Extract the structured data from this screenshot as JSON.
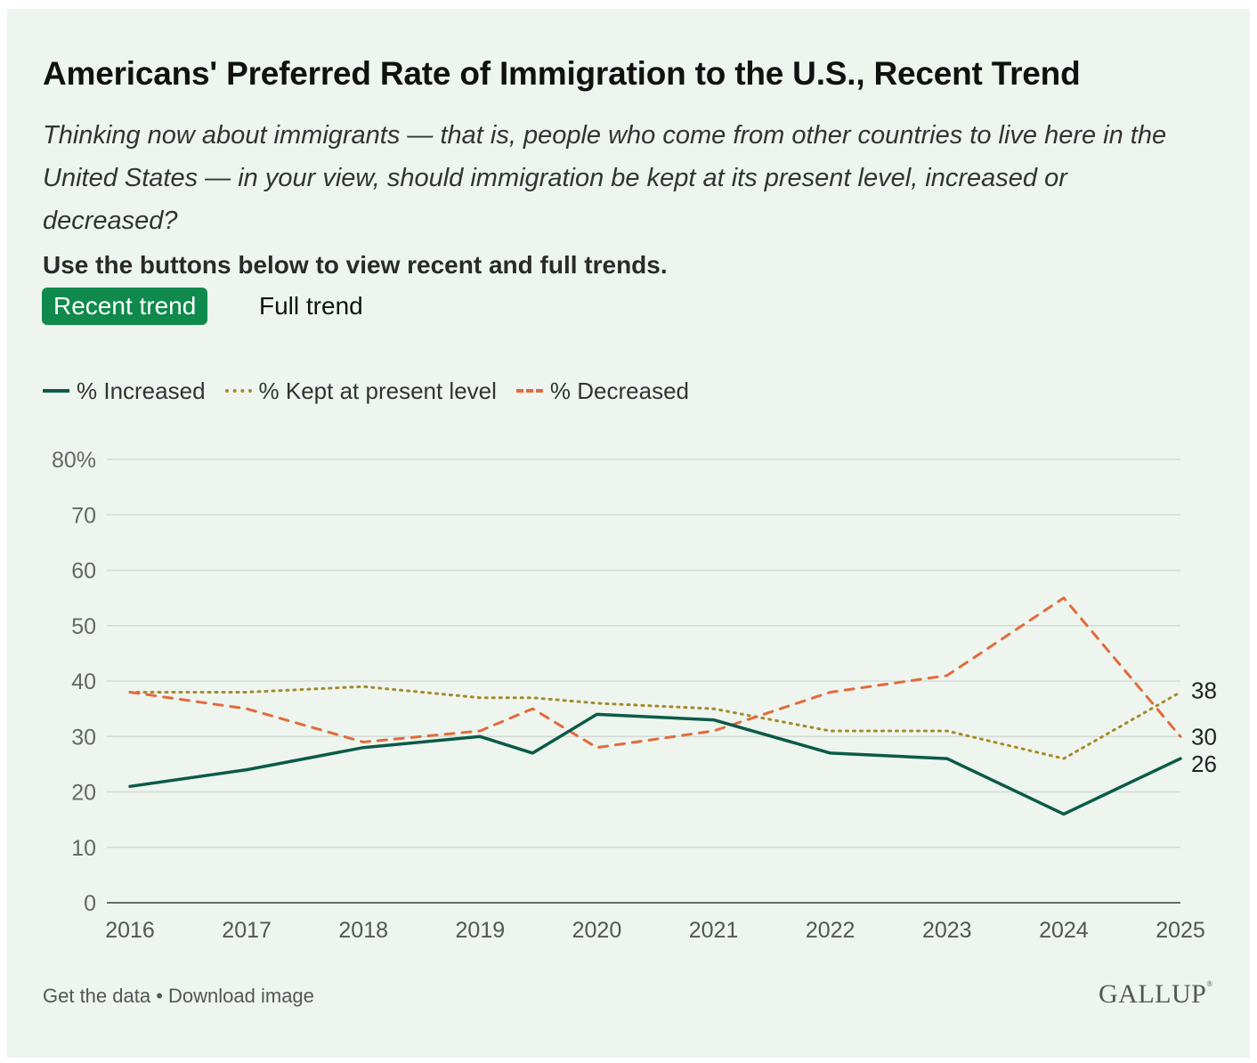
{
  "header": {
    "title": "Americans' Preferred Rate of Immigration to the U.S., Recent Trend",
    "question": "Thinking now about immigrants — that is, people who come from other countries to live here in the United States — in your view, should immigration be kept at its present level, increased or decreased?",
    "instruction": "Use the buttons below to view recent and full trends."
  },
  "buttons": {
    "recent": "Recent trend",
    "full": "Full trend",
    "active": "recent"
  },
  "footer": {
    "get_data": "Get the data",
    "separator": " • ",
    "download": "Download image",
    "logo": "GALLUP"
  },
  "colors": {
    "increased": "#0b5a47",
    "kept": "#a58a2a",
    "decreased": "#e26a3c",
    "accent": "#0f8a4c",
    "background": "#edf5ee"
  },
  "chart_data": {
    "type": "line",
    "title": "Americans' Preferred Rate of Immigration to the U.S., Recent Trend",
    "xlabel": "",
    "ylabel": "",
    "xlim": [
      2016,
      2025
    ],
    "ylim": [
      0,
      80
    ],
    "x_ticks": [
      2016,
      2017,
      2018,
      2019,
      2020,
      2021,
      2022,
      2023,
      2024,
      2025
    ],
    "y_ticks": [
      "0",
      "10",
      "20",
      "30",
      "40",
      "50",
      "60",
      "70",
      "80%"
    ],
    "grid": true,
    "legend": "top-left",
    "series": [
      {
        "name": "% Increased",
        "style": "solid",
        "color": "#0b5a47",
        "x": [
          2016,
          2017,
          2018,
          2019,
          2019.45,
          2020,
          2021,
          2022,
          2023,
          2024,
          2025
        ],
        "y": [
          21,
          24,
          28,
          30,
          27,
          34,
          33,
          27,
          26,
          16,
          26
        ],
        "end_label": "26"
      },
      {
        "name": "% Kept at present level",
        "style": "dotted",
        "color": "#a58a2a",
        "x": [
          2016,
          2017,
          2018,
          2019,
          2019.45,
          2020,
          2021,
          2022,
          2023,
          2024,
          2025
        ],
        "y": [
          38,
          38,
          39,
          37,
          37,
          36,
          35,
          31,
          31,
          26,
          38
        ],
        "end_label": "38"
      },
      {
        "name": "% Decreased",
        "style": "dashed",
        "color": "#e26a3c",
        "x": [
          2016,
          2017,
          2018,
          2019,
          2019.45,
          2020,
          2021,
          2022,
          2023,
          2024,
          2025
        ],
        "y": [
          38,
          35,
          29,
          31,
          35,
          28,
          31,
          38,
          41,
          55,
          30
        ],
        "end_label": "30"
      }
    ]
  }
}
